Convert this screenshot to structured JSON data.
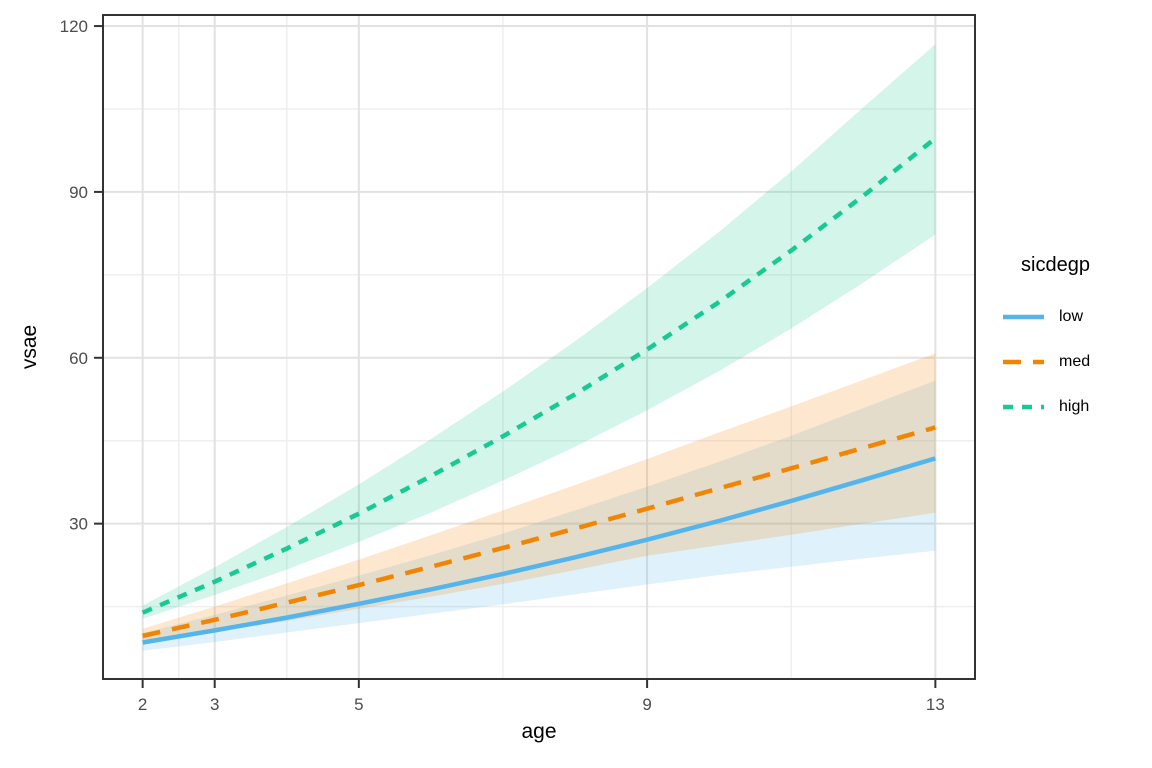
{
  "chart_data": {
    "type": "line",
    "title": "",
    "xlabel": "age",
    "ylabel": "vsae",
    "xlim": [
      1.45,
      13.55
    ],
    "ylim": [
      1.9,
      122.0
    ],
    "x_breaks": [
      2,
      3,
      5,
      9,
      13
    ],
    "x_minor_breaks": [
      2.5,
      4,
      7,
      11
    ],
    "y_breaks": [
      30,
      60,
      90,
      120
    ],
    "y_minor_breaks": [
      15,
      45,
      75,
      105
    ],
    "grid": "on",
    "x": [
      2,
      3,
      4,
      5,
      6,
      7,
      8,
      9,
      10,
      11,
      12,
      13
    ],
    "series": [
      {
        "name": "low",
        "color": "#54B4EC",
        "linetype": "solid",
        "values": [
          8.5,
          10.7,
          13.0,
          15.5,
          18.1,
          20.9,
          23.9,
          27.1,
          30.5,
          34.1,
          37.9,
          41.8
        ],
        "lower": [
          7.0,
          8.6,
          10.3,
          12.0,
          13.7,
          15.4,
          17.2,
          19.0,
          20.7,
          22.2,
          23.7,
          25.1
        ],
        "upper": [
          10.2,
          13.5,
          17.0,
          20.6,
          24.3,
          28.2,
          32.4,
          36.7,
          41.2,
          45.9,
          50.9,
          55.9
        ]
      },
      {
        "name": "med",
        "color": "#F28500",
        "linetype": "dashed",
        "values": [
          9.7,
          12.6,
          15.7,
          18.9,
          22.2,
          25.6,
          29.1,
          32.7,
          36.4,
          40.0,
          43.7,
          47.4
        ],
        "lower": [
          8.6,
          10.4,
          12.4,
          14.6,
          16.8,
          19.1,
          21.6,
          24.2,
          26.1,
          28.0,
          30.0,
          32.0
        ],
        "upper": [
          11.0,
          15.0,
          19.2,
          23.5,
          27.9,
          32.4,
          37.0,
          41.7,
          46.5,
          51.2,
          56.0,
          60.8
        ]
      },
      {
        "name": "high",
        "color": "#17C992",
        "linetype": "dotted",
        "values": [
          13.9,
          19.5,
          25.5,
          31.8,
          38.6,
          45.8,
          53.4,
          61.5,
          70.1,
          79.4,
          89.3,
          99.7
        ],
        "lower": [
          12.8,
          17.1,
          21.7,
          26.7,
          32.0,
          37.8,
          43.9,
          50.5,
          57.6,
          65.3,
          73.6,
          82.3
        ],
        "upper": [
          15.2,
          22.1,
          29.4,
          37.1,
          45.3,
          53.9,
          63.0,
          72.6,
          82.8,
          93.7,
          105.3,
          116.7
        ]
      }
    ],
    "legend": {
      "title": "sicdegp",
      "position": "right",
      "items": [
        "low",
        "med",
        "high"
      ]
    },
    "ribbon_alpha": 0.19,
    "colors": {
      "panel_border": "#333333",
      "grid_major": "#E2E2E2",
      "grid_minor": "#EFEFEF",
      "tick_label": "#4D4D4D",
      "axis_title": "#000000"
    }
  }
}
